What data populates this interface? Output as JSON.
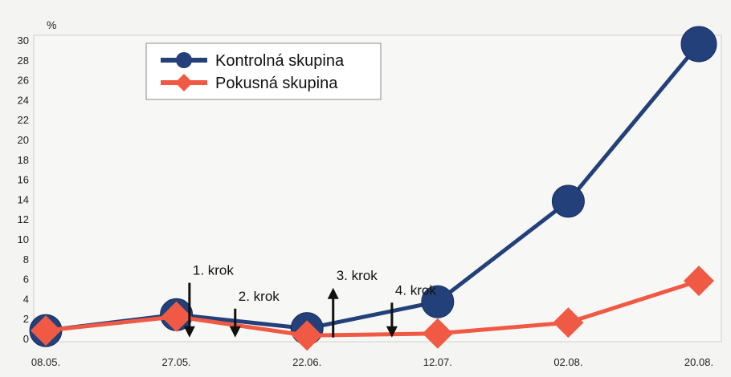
{
  "chart_data": {
    "type": "line",
    "unit_label": "%",
    "categories": [
      "08.05.",
      "27.05.",
      "22.06.",
      "12.07.",
      "02.08.",
      "20.08."
    ],
    "ylim": [
      0,
      30
    ],
    "yticks": [
      0,
      2,
      4,
      6,
      8,
      10,
      12,
      14,
      16,
      18,
      20,
      22,
      24,
      26,
      28,
      30
    ],
    "grid": false,
    "legend_position": "top-left",
    "series": [
      {
        "name": "Kontrolná skupina",
        "values": [
          0.8,
          2.4,
          1.0,
          3.7,
          13.8,
          29.6
        ],
        "color": "#23407a",
        "marker": "circle"
      },
      {
        "name": "Pokusná skupina",
        "values": [
          0.8,
          2.2,
          0.3,
          0.5,
          1.6,
          5.8
        ],
        "color": "#f05a44",
        "marker": "diamond"
      }
    ],
    "annotations": [
      {
        "label": "1. krok",
        "x": 1.1,
        "y_from": 5.6,
        "y_to": 0.1,
        "direction": "down"
      },
      {
        "label": "2. krok",
        "x": 1.45,
        "y_from": 3.0,
        "y_to": 0.1,
        "direction": "down"
      },
      {
        "label": "3. krok",
        "x": 2.2,
        "y_from": 0.1,
        "y_to": 5.1,
        "direction": "up"
      },
      {
        "label": "4. krok",
        "x": 2.65,
        "y_from": 3.6,
        "y_to": 0.1,
        "direction": "down"
      }
    ]
  }
}
